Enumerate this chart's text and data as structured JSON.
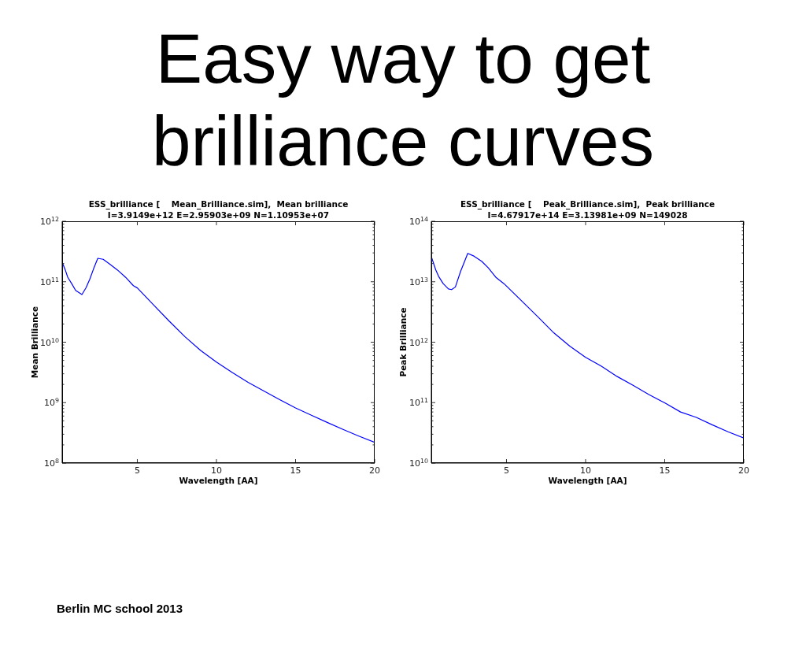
{
  "chart_data": [
    {
      "type": "other",
      "title": "Easy way to get brilliance curves",
      "annotations": [
        "Berlin MC school 2013"
      ]
    },
    {
      "type": "line",
      "title": "ESS_brilliance [    Mean_Brilliance.sim],  Mean brilliance",
      "subtitle": "I=3.9149e+12 E=2.95903e+09 N=1.10953e+07",
      "xlabel": "Wavelength [AA]",
      "ylabel": "Mean Brilliance",
      "log": "y",
      "line_style": "solid",
      "series": [
        {
          "color": "#0000ff",
          "x": [
            0.25,
            0.46,
            0.6,
            0.85,
            1.1,
            1.5,
            1.76,
            2.0,
            2.22,
            2.5,
            2.84,
            3.25,
            3.75,
            4.25,
            4.75,
            5,
            6,
            7,
            8,
            9,
            10,
            11,
            12,
            13,
            14,
            15,
            16,
            17,
            18,
            19,
            20
          ],
          "values": [
            210000000000.0,
            153000000000.0,
            119000000000.0,
            93000000000.0,
            72000000000.0,
            61500000000.0,
            80000000000.0,
            111000000000.0,
            160000000000.0,
            244000000000.0,
            235000000000.0,
            196000000000.0,
            156000000000.0,
            119000000000.0,
            86000000000.0,
            79000000000.0,
            42000000000.0,
            22500000000.0,
            12400000000.0,
            7300000000.0,
            4700000000.0,
            3140000000.0,
            2170000000.0,
            1560000000.0,
            1120000000.0,
            815000000.0,
            620000000.0,
            470000000.0,
            360000000.0,
            280000000.0,
            220000000.0
          ]
        }
      ],
      "xlim": [
        0.25,
        20
      ],
      "xticks": [
        5,
        10,
        15,
        20
      ],
      "ylim": [
        100000000.0,
        1000000000000.0
      ],
      "yticks": [
        {
          "value": 100000000.0,
          "label": "10$^{8}$"
        },
        {
          "value": 200000000.0,
          "label": null
        },
        {
          "value": 300000000.0,
          "label": null
        },
        {
          "value": 400000000.0,
          "label": null
        },
        {
          "value": 500000000.0,
          "label": null
        },
        {
          "value": 600000000.0,
          "label": null
        },
        {
          "value": 700000000.0,
          "label": null
        },
        {
          "value": 800000000.0,
          "label": null
        },
        {
          "value": 900000000.0,
          "label": null
        },
        {
          "value": 1000000000.0,
          "label": "10$^{9}$"
        },
        {
          "value": 2000000000.0,
          "label": null
        },
        {
          "value": 3000000000.0,
          "label": null
        },
        {
          "value": 4000000000.0,
          "label": null
        },
        {
          "value": 5000000000.0,
          "label": null
        },
        {
          "value": 6000000000.0,
          "label": null
        },
        {
          "value": 7000000000.0,
          "label": null
        },
        {
          "value": 8000000000.0,
          "label": null
        },
        {
          "value": 9000000000.0,
          "label": null
        },
        {
          "value": 10000000000.0,
          "label": "10$^{10}$"
        },
        {
          "value": 20000000000.0,
          "label": null
        },
        {
          "value": 30000000000.0,
          "label": null
        },
        {
          "value": 40000000000.0,
          "label": null
        },
        {
          "value": 50000000000.0,
          "label": null
        },
        {
          "value": 60000000000.0,
          "label": null
        },
        {
          "value": 70000000000.0,
          "label": null
        },
        {
          "value": 80000000000.0,
          "label": null
        },
        {
          "value": 90000000000.0,
          "label": null
        },
        {
          "value": 100000000000.0,
          "label": "10$^{11}$"
        },
        {
          "value": 200000000000.0,
          "label": null
        },
        {
          "value": 300000000000.0,
          "label": null
        },
        {
          "value": 400000000000.0,
          "label": null
        },
        {
          "value": 500000000000.0,
          "label": null
        },
        {
          "value": 600000000000.0,
          "label": null
        },
        {
          "value": 700000000000.0,
          "label": null
        },
        {
          "value": 800000000000.0,
          "label": null
        },
        {
          "value": 900000000000.0,
          "label": null
        },
        {
          "value": 1000000000000.0,
          "label": "10$^{12}$"
        }
      ]
    },
    {
      "type": "line",
      "title": "ESS_brilliance [    Peak_Brilliance.sim],  Peak brilliance",
      "subtitle": "I=4.67917e+14 E=3.13981e+09 N=149028",
      "xlabel": "Wavelength [AA]",
      "ylabel": "Peak Brilliance",
      "log": "y",
      "line_style": "solid",
      "series": [
        {
          "color": "#0000ff",
          "x": [
            0.25,
            0.53,
            0.73,
            1.0,
            1.33,
            1.53,
            1.77,
            2.1,
            2.32,
            2.55,
            2.94,
            3.43,
            3.85,
            4.35,
            4.84,
            6,
            7,
            8,
            9,
            10,
            11,
            12,
            13,
            14,
            15,
            16,
            17,
            18,
            19,
            20
          ],
          "values": [
            26000000000000.0,
            15700000000000.0,
            12000000000000.0,
            9300000000000.0,
            7600000000000.0,
            7400000000000.0,
            8200000000000.0,
            14900000000000.0,
            20700000000000.0,
            29400000000000.0,
            26600000000000.0,
            21800000000000.0,
            17000000000000.0,
            11700000000000.0,
            9300000000000.0,
            4700000000000.0,
            2600000000000.0,
            1420000000000.0,
            860000000000.0,
            560000000000.0,
            400000000000.0,
            270000000000.0,
            193000000000.0,
            136000000000.0,
            99000000000.0,
            70000000000.0,
            57000000000.0,
            43000000000.0,
            33000000000.0,
            26000000000.0
          ]
        }
      ],
      "xlim": [
        0.25,
        20
      ],
      "xticks": [
        5,
        10,
        15,
        20
      ],
      "ylim": [
        10000000000.0,
        100000000000000.0
      ],
      "yticks": [
        {
          "value": 10000000000.0,
          "label": "10$^{10}$"
        },
        {
          "value": 20000000000.0,
          "label": null
        },
        {
          "value": 30000000000.0,
          "label": null
        },
        {
          "value": 40000000000.0,
          "label": null
        },
        {
          "value": 50000000000.0,
          "label": null
        },
        {
          "value": 60000000000.0,
          "label": null
        },
        {
          "value": 70000000000.0,
          "label": null
        },
        {
          "value": 80000000000.0,
          "label": null
        },
        {
          "value": 90000000000.0,
          "label": null
        },
        {
          "value": 100000000000.0,
          "label": "10$^{11}$"
        },
        {
          "value": 200000000000.0,
          "label": null
        },
        {
          "value": 300000000000.0,
          "label": null
        },
        {
          "value": 400000000000.0,
          "label": null
        },
        {
          "value": 500000000000.0,
          "label": null
        },
        {
          "value": 600000000000.0,
          "label": null
        },
        {
          "value": 700000000000.0,
          "label": null
        },
        {
          "value": 800000000000.0,
          "label": null
        },
        {
          "value": 900000000000.0,
          "label": null
        },
        {
          "value": 1000000000000.0,
          "label": "10$^{12}$"
        },
        {
          "value": 2000000000000.0,
          "label": null
        },
        {
          "value": 3000000000000.0,
          "label": null
        },
        {
          "value": 4000000000000.0,
          "label": null
        },
        {
          "value": 5000000000000.0,
          "label": null
        },
        {
          "value": 6000000000000.0,
          "label": null
        },
        {
          "value": 7000000000000.0,
          "label": null
        },
        {
          "value": 8000000000000.0,
          "label": null
        },
        {
          "value": 9000000000000.0,
          "label": null
        },
        {
          "value": 10000000000000.0,
          "label": "10$^{13}$"
        },
        {
          "value": 20000000000000.0,
          "label": null
        },
        {
          "value": 30000000000000.0,
          "label": null
        },
        {
          "value": 40000000000000.0,
          "label": null
        },
        {
          "value": 50000000000000.0,
          "label": null
        },
        {
          "value": 60000000000000.0,
          "label": null
        },
        {
          "value": 70000000000000.0,
          "label": null
        },
        {
          "value": 80000000000000.0,
          "label": null
        },
        {
          "value": 90000000000000.0,
          "label": null
        },
        {
          "value": 100000000000000.0,
          "label": "10$^{14}$"
        }
      ]
    }
  ]
}
